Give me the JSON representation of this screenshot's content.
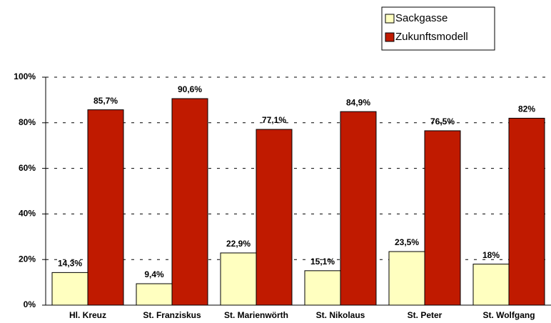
{
  "chart_data": {
    "type": "bar",
    "categories": [
      "Hl. Kreuz",
      "St. Franziskus",
      "St. Marienwörth",
      "St. Nikolaus",
      "St. Peter",
      "St. Wolfgang"
    ],
    "series": [
      {
        "name": "Sackgasse",
        "color": "#ffffc0",
        "values": [
          14.3,
          9.4,
          22.9,
          15.1,
          23.5,
          18
        ],
        "value_labels": [
          "14,3%",
          "9,4%",
          "22,9%",
          "15,1%",
          "23,5%",
          "18%"
        ]
      },
      {
        "name": "Zukunftsmodell",
        "color": "#c01a00",
        "values": [
          85.7,
          90.6,
          77.1,
          84.9,
          76.5,
          82
        ],
        "value_labels": [
          "85,7%",
          "90,6%",
          "77,1%",
          "84,9%",
          "76,5%",
          "82%"
        ]
      }
    ],
    "ylim": [
      0,
      100
    ],
    "yticks": [
      {
        "value": 0,
        "label": "0%"
      },
      {
        "value": 20,
        "label": "20%"
      },
      {
        "value": 40,
        "label": "40%"
      },
      {
        "value": 60,
        "label": "60%"
      },
      {
        "value": 80,
        "label": "80%"
      },
      {
        "value": 100,
        "label": "100%"
      }
    ],
    "grid": true,
    "legend": "top-right"
  }
}
